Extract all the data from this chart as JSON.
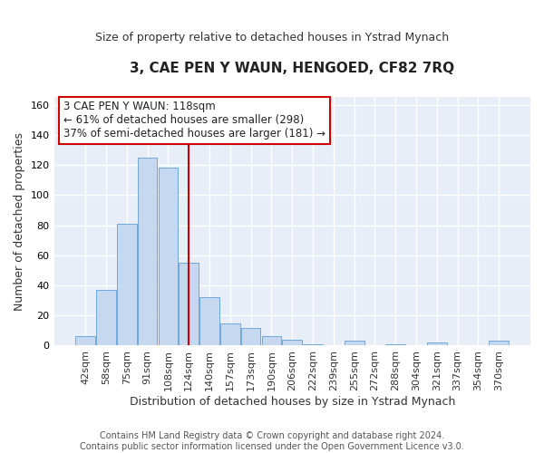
{
  "title": "3, CAE PEN Y WAUN, HENGOED, CF82 7RQ",
  "subtitle": "Size of property relative to detached houses in Ystrad Mynach",
  "xlabel": "Distribution of detached houses by size in Ystrad Mynach",
  "ylabel": "Number of detached properties",
  "categories": [
    "42sqm",
    "58sqm",
    "75sqm",
    "91sqm",
    "108sqm",
    "124sqm",
    "140sqm",
    "157sqm",
    "173sqm",
    "190sqm",
    "206sqm",
    "222sqm",
    "239sqm",
    "255sqm",
    "272sqm",
    "288sqm",
    "304sqm",
    "321sqm",
    "337sqm",
    "354sqm",
    "370sqm"
  ],
  "values": [
    6,
    37,
    81,
    125,
    118,
    55,
    32,
    15,
    12,
    6,
    4,
    1,
    0,
    3,
    0,
    1,
    0,
    2,
    0,
    0,
    3
  ],
  "bar_color": "#c5d8f0",
  "bar_edge_color": "#6fa8d8",
  "vline_x_index": 5.0,
  "vline_color": "#cc0000",
  "annotation_text": "3 CAE PEN Y WAUN: 118sqm\n← 61% of detached houses are smaller (298)\n37% of semi-detached houses are larger (181) →",
  "annotation_box_color": "#ffffff",
  "annotation_box_edge_color": "#cc0000",
  "ylim": [
    0,
    165
  ],
  "yticks": [
    0,
    20,
    40,
    60,
    80,
    100,
    120,
    140,
    160
  ],
  "footer": "Contains HM Land Registry data © Crown copyright and database right 2024.\nContains public sector information licensed under the Open Government Licence v3.0.",
  "fig_bg_color": "#ffffff",
  "plot_bg_color": "#e8eef8",
  "grid_color": "#ffffff",
  "title_fontsize": 11,
  "subtitle_fontsize": 9,
  "tick_fontsize": 8,
  "ylabel_fontsize": 9,
  "xlabel_fontsize": 9,
  "footer_fontsize": 7
}
